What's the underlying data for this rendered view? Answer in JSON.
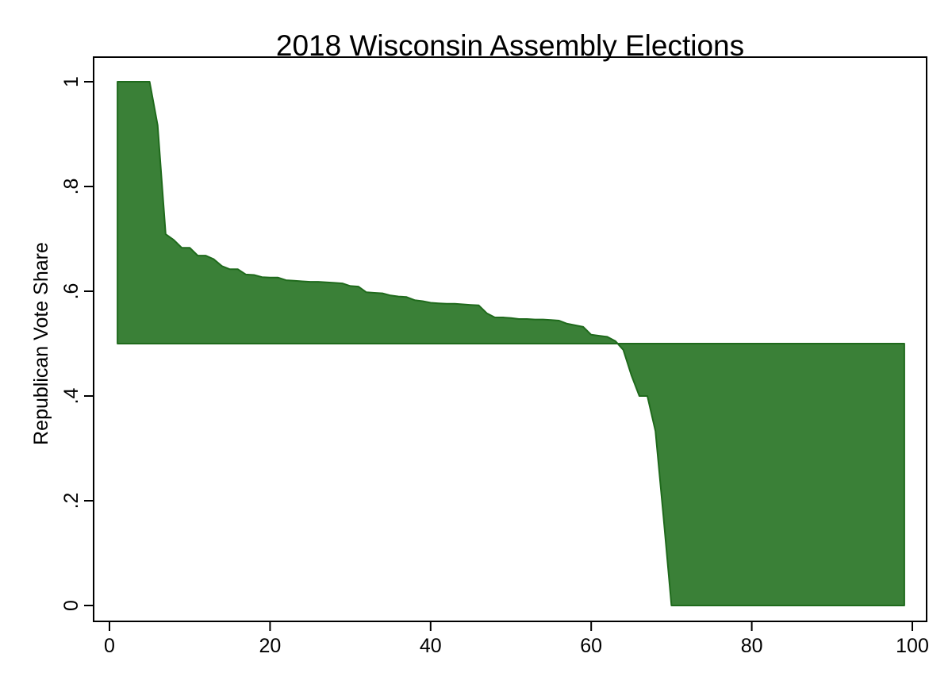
{
  "chart_data": {
    "type": "area",
    "title": "2018 Wisconsin Assembly Elections",
    "xlabel": "",
    "ylabel": "Republican Vote Share",
    "xlim": [
      0,
      100
    ],
    "ylim": [
      0,
      1
    ],
    "baseline": 0.5,
    "grid": false,
    "x_ticks": [
      0,
      20,
      40,
      60,
      80,
      100
    ],
    "x_tick_labels": [
      "0",
      "20",
      "40",
      "60",
      "80",
      "100"
    ],
    "y_ticks": [
      0,
      0.2,
      0.4,
      0.6,
      0.8,
      1
    ],
    "y_tick_labels": [
      "0",
      ".2",
      ".4",
      ".6",
      ".8",
      "1"
    ],
    "fill_color": "#3a8037",
    "line_color": "#1f6a1c",
    "x": [
      1,
      2,
      3,
      4,
      5,
      6,
      7,
      8,
      9,
      10,
      11,
      12,
      13,
      14,
      15,
      16,
      17,
      18,
      19,
      20,
      21,
      22,
      23,
      24,
      25,
      26,
      27,
      28,
      29,
      30,
      31,
      32,
      33,
      34,
      35,
      36,
      37,
      38,
      39,
      40,
      41,
      42,
      43,
      44,
      45,
      46,
      47,
      48,
      49,
      50,
      51,
      52,
      53,
      54,
      55,
      56,
      57,
      58,
      59,
      60,
      61,
      62,
      63,
      64,
      65,
      66,
      67,
      68,
      69,
      70,
      71,
      72,
      73,
      74,
      75,
      76,
      77,
      78,
      79,
      80,
      81,
      82,
      83,
      84,
      85,
      86,
      87,
      88,
      89,
      90,
      91,
      92,
      93,
      94,
      95,
      96,
      97,
      98,
      99
    ],
    "values": [
      1,
      1,
      1,
      1,
      1,
      0.917,
      0.709,
      0.698,
      0.683,
      0.683,
      0.668,
      0.668,
      0.661,
      0.648,
      0.642,
      0.642,
      0.632,
      0.631,
      0.627,
      0.626,
      0.626,
      0.621,
      0.62,
      0.619,
      0.618,
      0.618,
      0.617,
      0.616,
      0.615,
      0.61,
      0.609,
      0.598,
      0.597,
      0.596,
      0.592,
      0.59,
      0.589,
      0.583,
      0.581,
      0.578,
      0.577,
      0.576,
      0.576,
      0.575,
      0.574,
      0.573,
      0.558,
      0.55,
      0.55,
      0.549,
      0.547,
      0.547,
      0.546,
      0.546,
      0.545,
      0.544,
      0.538,
      0.535,
      0.532,
      0.517,
      0.515,
      0.513,
      0.505,
      0.488,
      0.44,
      0.4,
      0.4,
      0.333,
      0.17,
      0,
      0,
      0,
      0,
      0,
      0,
      0,
      0,
      0,
      0,
      0,
      0,
      0,
      0,
      0,
      0,
      0,
      0,
      0,
      0,
      0,
      0,
      0,
      0,
      0,
      0,
      0,
      0,
      0,
      0
    ]
  }
}
